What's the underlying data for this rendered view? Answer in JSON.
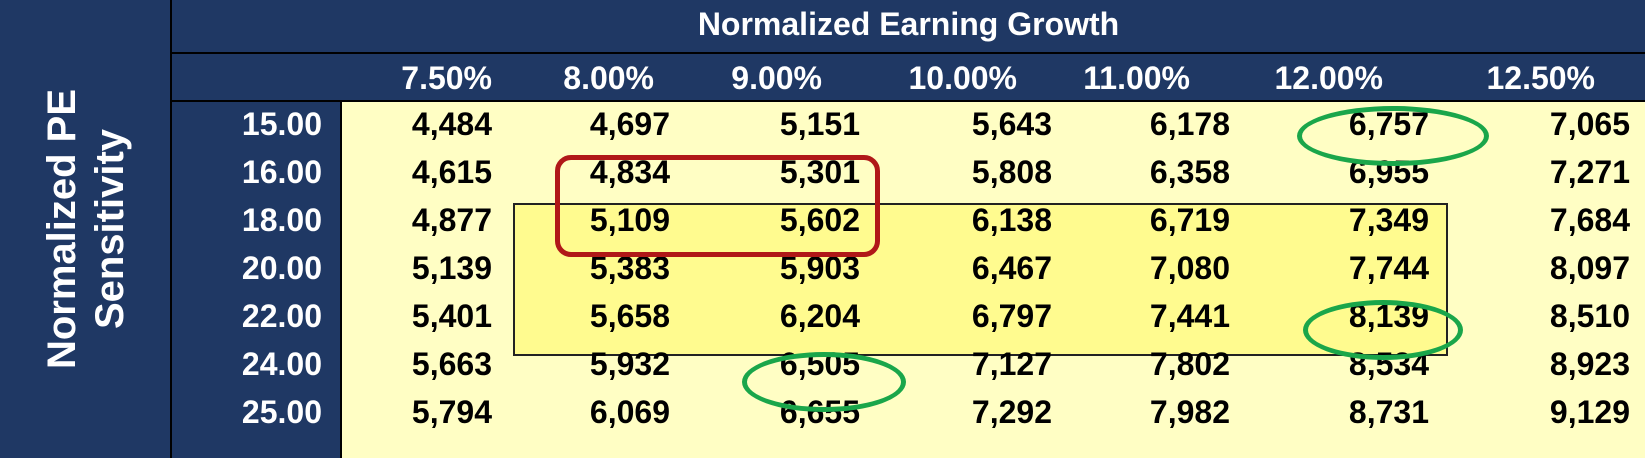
{
  "row_axis_title": [
    "Normalized PE",
    "Sensitivity"
  ],
  "column_axis_title": "Normalized Earning Growth",
  "columns": [
    "7.50%",
    "8.00%",
    "9.00%",
    "10.00%",
    "11.00%",
    "12.00%",
    "12.50%"
  ],
  "rows": [
    {
      "label": "15.00",
      "values": [
        "4,484",
        "4,697",
        "5,151",
        "5,643",
        "6,178",
        "6,757",
        "7,065"
      ]
    },
    {
      "label": "16.00",
      "values": [
        "4,615",
        "4,834",
        "5,301",
        "5,808",
        "6,358",
        "6,955",
        "7,271"
      ]
    },
    {
      "label": "18.00",
      "values": [
        "4,877",
        "5,109",
        "5,602",
        "6,138",
        "6,719",
        "7,349",
        "7,684"
      ]
    },
    {
      "label": "20.00",
      "values": [
        "5,139",
        "5,383",
        "5,903",
        "6,467",
        "7,080",
        "7,744",
        "8,097"
      ]
    },
    {
      "label": "22.00",
      "values": [
        "5,401",
        "5,658",
        "6,204",
        "6,797",
        "7,441",
        "8,139",
        "8,510"
      ]
    },
    {
      "label": "24.00",
      "values": [
        "5,663",
        "5,932",
        "6,505",
        "7,127",
        "7,802",
        "8,534",
        "8,923"
      ]
    },
    {
      "label": "25.00",
      "values": [
        "5,794",
        "6,069",
        "6,655",
        "7,292",
        "7,982",
        "8,731",
        "9,129"
      ]
    }
  ],
  "colors": {
    "header_bg": "#1f3864",
    "table_bg": "#fffec4",
    "highlight_bg": "#fffb8f",
    "red_mark": "#b01818",
    "green_mark": "#1aa64a"
  }
}
